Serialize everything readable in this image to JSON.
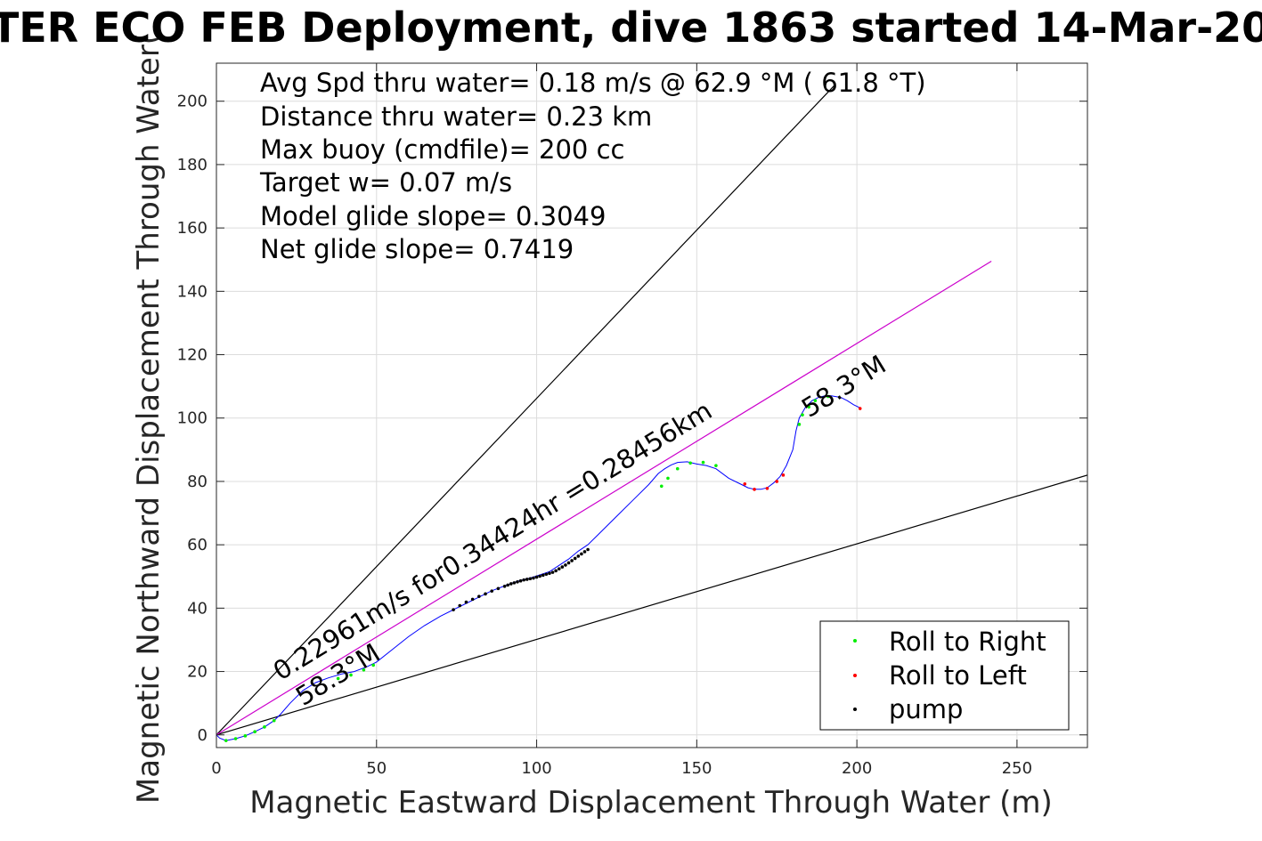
{
  "chart_data": {
    "type": "scatter",
    "title": "TER ECO FEB Deployment, dive 1863 started 14-Mar-20",
    "xlabel": "Magnetic Eastward Displacement Through Water (m)",
    "ylabel": "Magnetic Northward Displacement Through Water(",
    "xlim": [
      0,
      272
    ],
    "ylim": [
      -4,
      212
    ],
    "xticks": [
      0,
      50,
      100,
      150,
      200,
      250
    ],
    "yticks": [
      0,
      20,
      40,
      60,
      80,
      100,
      120,
      140,
      160,
      180,
      200
    ],
    "grid": true,
    "legend_position": "bottom-right",
    "info_lines": [
      "Avg Spd thru water=  0.18 m/s @  62.9 °M ( 61.8 °T)",
      "Distance thru water=  0.23 km",
      "Max buoy (cmdfile)= 200 cc",
      "Target w= 0.07 m/s",
      "Model glide slope= 0.3049",
      "Net glide slope= 0.7419"
    ],
    "annotations": [
      {
        "text": "0.22961m/s for0.34424hr =0.28456km",
        "x": 20,
        "y": 17,
        "angle": -31.5
      },
      {
        "text": "58.3°M",
        "x": 27,
        "y": 9,
        "angle": -31.5
      },
      {
        "text": "58.3°M",
        "x": 185,
        "y": 100,
        "angle": -31.5
      }
    ],
    "reference_lines": [
      {
        "name": "upper-bound-line",
        "color": "#000000",
        "x": [
          0,
          193
        ],
        "y": [
          0,
          205
        ]
      },
      {
        "name": "lower-bound-line",
        "color": "#000000",
        "x": [
          0,
          272
        ],
        "y": [
          0,
          82
        ]
      },
      {
        "name": "average-heading-line",
        "color": "#cc00cc",
        "x": [
          0,
          242
        ],
        "y": [
          0,
          149.5
        ]
      }
    ],
    "track": {
      "name": "track",
      "color": "#0000ff",
      "x": [
        0,
        1,
        3,
        6,
        9,
        12,
        15,
        18,
        20,
        23,
        27,
        31,
        35,
        39,
        43,
        47,
        50,
        55,
        60,
        65,
        70,
        74,
        78,
        82,
        86,
        90,
        94,
        98,
        101,
        104,
        107,
        110,
        113,
        116,
        120,
        125,
        130,
        135,
        138,
        140,
        142,
        144,
        147,
        150,
        153,
        156,
        160,
        164,
        166,
        168,
        170,
        172,
        174,
        176,
        178,
        180,
        181,
        182,
        184,
        186,
        188,
        190,
        192,
        195,
        197,
        199,
        201
      ],
      "y": [
        0,
        -1,
        -1.8,
        -1.2,
        -0.3,
        1,
        2.5,
        4.5,
        6.5,
        10,
        14,
        16.5,
        18,
        19.2,
        20,
        21.5,
        23,
        27,
        31,
        34.5,
        37.5,
        39.5,
        41.5,
        43.5,
        45.5,
        47,
        48.5,
        49.5,
        50.5,
        51.5,
        53.5,
        55.5,
        58,
        60,
        64,
        69,
        74,
        79,
        82.5,
        84,
        85.2,
        86,
        86.2,
        85.5,
        85,
        84,
        81,
        79,
        78,
        77.5,
        77.5,
        78,
        79.5,
        81.5,
        85,
        90,
        96,
        100,
        103.5,
        105.5,
        106.5,
        107,
        107,
        106.5,
        105.5,
        104.2,
        103.2
      ]
    },
    "series": [
      {
        "name": "Roll to Right",
        "color": "#00ee00",
        "x": [
          3,
          6,
          9,
          12,
          15,
          18,
          38,
          42,
          46,
          49,
          139,
          141,
          144,
          148,
          152,
          156,
          182,
          183,
          185,
          187,
          191
        ],
        "y": [
          -1.8,
          -1.2,
          -0.3,
          1,
          2.5,
          4.5,
          17.8,
          18.9,
          20.5,
          22,
          78.5,
          81,
          84,
          85.8,
          86,
          85,
          98,
          101,
          103.5,
          105.5,
          106.8
        ]
      },
      {
        "name": "Roll to Left",
        "color": "#ff0000",
        "x": [
          165,
          168,
          172,
          175,
          177,
          201
        ],
        "y": [
          79.2,
          77.5,
          77.8,
          80,
          82,
          103
        ]
      },
      {
        "name": "pump",
        "color": "#000000",
        "x": [
          74,
          76,
          78,
          80,
          82,
          84,
          86,
          88,
          90,
          91,
          92,
          93,
          94,
          95,
          96,
          97,
          98,
          99,
          100,
          101,
          102,
          103,
          104,
          105,
          106,
          107,
          108,
          109,
          110,
          111,
          112,
          113,
          114,
          115,
          116
        ],
        "y": [
          39.5,
          40.8,
          41.9,
          42.8,
          43.7,
          44.5,
          45.4,
          46.2,
          46.9,
          47.3,
          47.7,
          48,
          48.3,
          48.6,
          48.9,
          49.1,
          49.3,
          49.5,
          49.8,
          50.1,
          50.4,
          50.7,
          51,
          51.3,
          51.8,
          52.4,
          53,
          53.6,
          54.3,
          55,
          55.7,
          56.4,
          57.1,
          57.8,
          58.5
        ]
      }
    ]
  }
}
